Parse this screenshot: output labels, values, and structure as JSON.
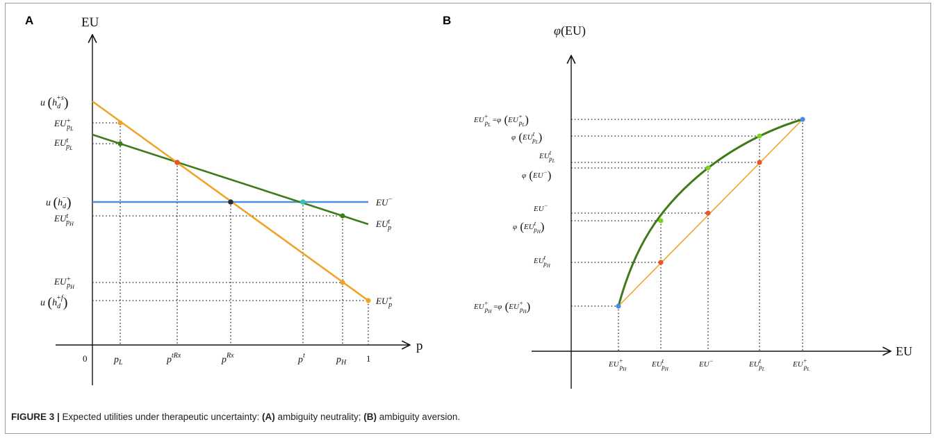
{
  "colors": {
    "orange": "#f0a32a",
    "green": "#3f7a1a",
    "blue": "#4a90d9",
    "red": "#e8552a",
    "darkdot": "#2b2b3a",
    "teal": "#2ec4b6",
    "lightgreen": "#7ed321",
    "blue_dot": "#4a8be0",
    "orange_dot": "#f0a32a"
  },
  "panelA": {
    "label": "A",
    "y_axis_title": "EU",
    "x_axis_title": "p",
    "x_ticks": [
      "0",
      "p_L",
      "p^{tRx}",
      "p^{Rx}",
      "p^t",
      "p_H",
      "1"
    ],
    "y_labels": [
      "u(h_d^{+s})",
      "EU^+_{p_L}",
      "EU^t_{p_L}",
      "u(h_d^-)",
      "EU^t_{p_H}",
      "EU^+_{p_H}",
      "u(h_d^{+f})"
    ],
    "line_labels": [
      "EU^-",
      "EU^t_p",
      "EU^+_p"
    ]
  },
  "panelB": {
    "label": "B",
    "y_axis_title": "φ(EU)",
    "x_axis_title": "EU",
    "x_ticks": [
      "EU^+_{p_H}",
      "EU^t_{p_H}",
      "EU^-",
      "EU^t_{p_L}",
      "EU^+_{p_L}"
    ],
    "y_labels": [
      "EU^+_{p_L} = φ(EU^+_{p_L})",
      "φ(EU^t_{p_L})",
      "EU^t_{p_L}",
      "φ(EU^-)",
      "EU^-",
      "φ(EU^t_{p_H})",
      "EU^t_{p_H}",
      "EU^+_{p_H} = φ(EU^+_{p_H})"
    ]
  },
  "caption": {
    "label": "FIGURE 3 |",
    "text_1": " Expected utilities under therapeutic uncertainty: ",
    "a_bold": "(A)",
    "text_2": " ambiguity neutrality; ",
    "b_bold": "(B)",
    "text_3": " ambiguity aversion."
  }
}
